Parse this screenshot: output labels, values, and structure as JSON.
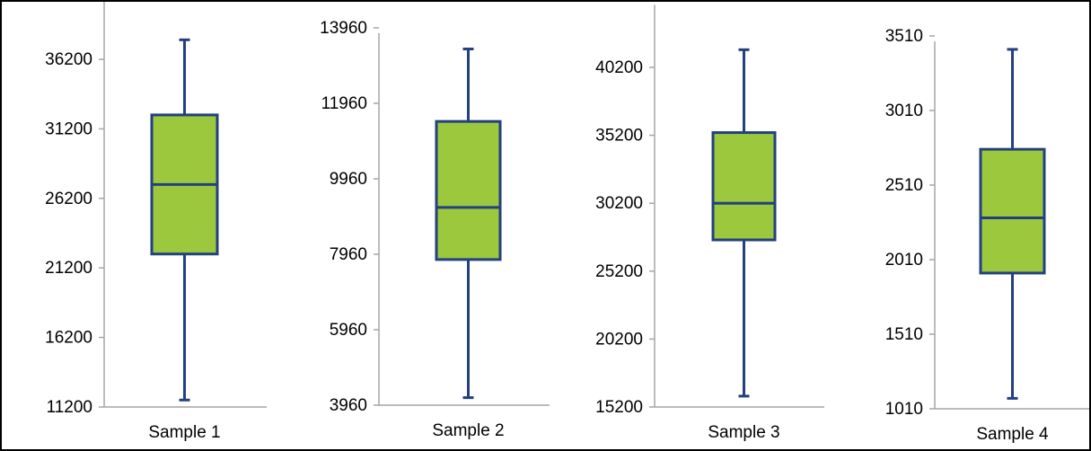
{
  "chart_data": [
    {
      "type": "box",
      "category": "Sample 1",
      "ylim": [
        11200,
        41200
      ],
      "ticks": [
        11200,
        16200,
        21200,
        26200,
        31200,
        36200
      ],
      "box": {
        "min": 11700,
        "q1": 22200,
        "median": 27200,
        "q3": 32200,
        "max": 37600
      }
    },
    {
      "type": "box",
      "category": "Sample 2",
      "ylim": [
        3960,
        13960
      ],
      "ticks": [
        3960,
        5960,
        7960,
        9960,
        11960,
        13960
      ],
      "box": {
        "min": 4160,
        "q1": 7820,
        "median": 9200,
        "q3": 11480,
        "max": 13400
      }
    },
    {
      "type": "box",
      "category": "Sample 3",
      "ylim": [
        15200,
        45200
      ],
      "ticks": [
        15200,
        20200,
        25200,
        30200,
        35200,
        40200
      ],
      "box": {
        "min": 16000,
        "q1": 27500,
        "median": 30200,
        "q3": 35400,
        "max": 41500
      }
    },
    {
      "type": "box",
      "category": "Sample 4",
      "ylim": [
        1010,
        3510
      ],
      "ticks": [
        1010,
        1510,
        2010,
        2510,
        3010,
        3510
      ],
      "box": {
        "min": 1080,
        "q1": 1920,
        "median": 2290,
        "q3": 2750,
        "max": 3420
      }
    }
  ],
  "colors": {
    "box_fill": "#9BC83C",
    "box_stroke": "#23407F",
    "axis": "#A6A6A6",
    "text": "#000000",
    "frame": "#000000"
  }
}
